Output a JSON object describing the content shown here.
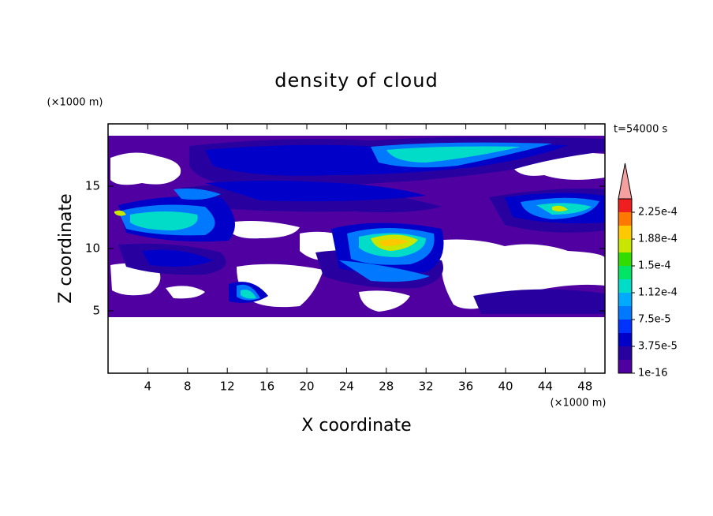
{
  "chart_data": {
    "type": "contour",
    "title": "density of cloud",
    "x_label": "X coordinate",
    "y_label": "Z coordinate",
    "x_unit": "(×1000 m)",
    "y_unit": "(×1000 m)",
    "annotation": "t=54000 s",
    "xlim": [
      0,
      50
    ],
    "xticks": [
      4,
      8,
      12,
      16,
      20,
      24,
      28,
      32,
      36,
      40,
      44,
      48
    ],
    "ylim": [
      0,
      20
    ],
    "yticks": [
      5,
      10,
      15
    ],
    "colorbar": {
      "colors": [
        "#5000a0",
        "#2800a0",
        "#0000c8",
        "#0032ff",
        "#0078ff",
        "#00aaff",
        "#00dcc8",
        "#00e664",
        "#32dc00",
        "#c8e600",
        "#ffc800",
        "#ff7800",
        "#f01e1e"
      ],
      "extend_color": "#f5a0a0",
      "clim": [
        0,
        0.00024375
      ],
      "ticks": [
        {
          "value": 1e-16,
          "label": "1e-16"
        },
        {
          "value": 3.75e-05,
          "label": "3.75e-5"
        },
        {
          "value": 7.5e-05,
          "label": "7.5e-5"
        },
        {
          "value": 0.0001125,
          "label": "1.12e-4"
        },
        {
          "value": 0.00015,
          "label": "1.5e-4"
        },
        {
          "value": 0.0001875,
          "label": "1.88e-4"
        },
        {
          "value": 0.000225,
          "label": "2.25e-4"
        }
      ]
    }
  }
}
